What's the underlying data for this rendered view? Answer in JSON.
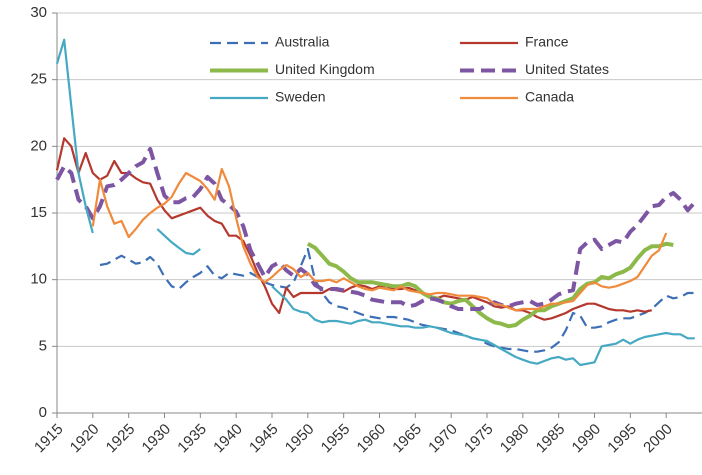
{
  "chart_data": {
    "type": "line",
    "x": [
      1915,
      1916,
      1917,
      1918,
      1919,
      1920,
      1921,
      1922,
      1923,
      1924,
      1925,
      1926,
      1927,
      1928,
      1929,
      1930,
      1931,
      1932,
      1933,
      1934,
      1935,
      1936,
      1937,
      1938,
      1939,
      1940,
      1941,
      1942,
      1943,
      1944,
      1945,
      1946,
      1947,
      1948,
      1949,
      1950,
      1951,
      1952,
      1953,
      1954,
      1955,
      1956,
      1957,
      1958,
      1959,
      1960,
      1961,
      1962,
      1963,
      1964,
      1965,
      1966,
      1967,
      1968,
      1969,
      1970,
      1971,
      1972,
      1973,
      1974,
      1975,
      1976,
      1977,
      1978,
      1979,
      1980,
      1981,
      1982,
      1983,
      1984,
      1985,
      1986,
      1987,
      1988,
      1989,
      1990,
      1991,
      1992,
      1993,
      1994,
      1995,
      1996,
      1997,
      1998,
      1999,
      2000,
      2001,
      2002,
      2003,
      2004
    ],
    "xlim": [
      1915,
      2005
    ],
    "xticks": [
      1915,
      1920,
      1925,
      1930,
      1935,
      1940,
      1945,
      1950,
      1955,
      1960,
      1965,
      1970,
      1975,
      1980,
      1985,
      1990,
      1995,
      2000
    ],
    "ylim": [
      0,
      30
    ],
    "yticks": [
      0,
      5,
      10,
      15,
      20,
      25,
      30
    ],
    "grid": true,
    "legend": "top",
    "series": [
      {
        "name": "Australia",
        "color": "#3d6fb6",
        "line_style": "dashed",
        "thick": false,
        "values": [
          null,
          null,
          null,
          null,
          null,
          null,
          11.1,
          11.2,
          11.5,
          11.8,
          11.5,
          11.2,
          11.3,
          11.7,
          11.2,
          10.2,
          9.5,
          9.3,
          9.8,
          10.2,
          10.5,
          11,
          10.3,
          10.1,
          10.5,
          10.4,
          10.3,
          10.5,
          10.2,
          9.8,
          9.6,
          9.5,
          9.4,
          9.8,
          11,
          12.3,
          10,
          9,
          8.3,
          8,
          7.9,
          7.7,
          7.5,
          7.3,
          7.2,
          7.1,
          7.2,
          7.2,
          7.1,
          7,
          6.8,
          6.6,
          6.5,
          6.4,
          6.3,
          6.2,
          6,
          5.8,
          5.6,
          5.5,
          5.2,
          5,
          4.9,
          4.8,
          4.8,
          4.7,
          4.6,
          4.6,
          4.7,
          4.9,
          5.3,
          6.2,
          7.5,
          7.3,
          6.4,
          6.4,
          6.5,
          6.8,
          7,
          7.1,
          7.1,
          7.3,
          7.5,
          7.8,
          8.3,
          8.8,
          8.6,
          8.7,
          9,
          9
        ]
      },
      {
        "name": "France",
        "color": "#b5382f",
        "line_style": "solid",
        "thick": false,
        "values": [
          18.2,
          20.6,
          20,
          18,
          19.5,
          18,
          17.5,
          17.8,
          18.9,
          18,
          18,
          17.6,
          17.3,
          17.2,
          16,
          15.2,
          14.6,
          14.8,
          15,
          15.2,
          15.4,
          14.8,
          14.4,
          14.2,
          13.3,
          13.3,
          12.9,
          11.8,
          10.5,
          9.5,
          8.2,
          7.5,
          9.4,
          8.7,
          9,
          9,
          9,
          9,
          9.3,
          9.2,
          9.1,
          9.4,
          9.6,
          9.5,
          9.3,
          9.5,
          9.5,
          9.3,
          9.3,
          9.4,
          9.2,
          9,
          8.8,
          8.6,
          8.8,
          8.7,
          8.6,
          8.5,
          8.7,
          8.5,
          8.3,
          8,
          7.9,
          8,
          7.7,
          7.7,
          7.5,
          7.2,
          7,
          7.1,
          7.3,
          7.5,
          7.8,
          8,
          8.2,
          8.2,
          8,
          7.8,
          7.7,
          7.7,
          7.6,
          7.7,
          7.6,
          7.7,
          null,
          null,
          null,
          null,
          null,
          null
        ]
      },
      {
        "name": "United Kingdom",
        "color": "#8cb94a",
        "line_style": "solid",
        "thick": true,
        "values": [
          null,
          null,
          null,
          null,
          null,
          null,
          null,
          null,
          null,
          null,
          null,
          null,
          null,
          null,
          null,
          null,
          null,
          null,
          null,
          null,
          null,
          null,
          null,
          null,
          null,
          null,
          null,
          null,
          null,
          null,
          null,
          null,
          null,
          null,
          null,
          12.7,
          12.4,
          11.8,
          11.2,
          11,
          10.6,
          10.1,
          9.8,
          9.8,
          9.8,
          9.7,
          9.6,
          9.5,
          9.5,
          9.7,
          9.5,
          9,
          8.7,
          8.6,
          8.3,
          8.2,
          8.4,
          8.5,
          8,
          7.5,
          7.1,
          6.8,
          6.7,
          6.5,
          6.6,
          7,
          7.3,
          7.7,
          7.7,
          8,
          8.2,
          8.4,
          8.6,
          9.3,
          9.7,
          9.8,
          10.2,
          10.1,
          10.4,
          10.6,
          10.9,
          11.6,
          12.2,
          12.5,
          12.5,
          12.7,
          12.6,
          null,
          null,
          null
        ]
      },
      {
        "name": "United States",
        "color": "#7d56a3",
        "line_style": "dashed",
        "thick": true,
        "values": [
          17.5,
          18.5,
          18,
          16,
          15.5,
          14.6,
          15.5,
          17,
          17.1,
          17.5,
          18,
          18.5,
          18.8,
          19.8,
          18,
          16.3,
          15.8,
          15.8,
          16.1,
          16.2,
          16.8,
          17.7,
          17.2,
          16,
          15.6,
          15.1,
          14,
          12.2,
          11.2,
          10.2,
          11,
          11.3,
          10.7,
          10.3,
          10.8,
          10.4,
          9.6,
          9.3,
          9.3,
          9.3,
          9.2,
          9.1,
          9,
          8.8,
          8.5,
          8.4,
          8.3,
          8.3,
          8.3,
          8,
          8.1,
          8.4,
          8.6,
          8.5,
          8.3,
          8,
          7.8,
          7.8,
          7.8,
          7.8,
          8.1,
          8.3,
          8.1,
          8,
          8.2,
          8.3,
          8.4,
          8.1,
          8.2,
          8.5,
          8.9,
          9.1,
          9.2,
          12.3,
          12.8,
          13,
          12.3,
          12.6,
          12.9,
          12.8,
          13.6,
          14.1,
          14.8,
          15.5,
          15.6,
          16.2,
          16.5,
          16,
          15.2,
          15.8
        ]
      },
      {
        "name": "Sweden",
        "color": "#46a9c3",
        "line_style": "solid",
        "thick": false,
        "values": [
          26.2,
          28,
          23,
          18,
          15.5,
          13.5,
          null,
          null,
          null,
          null,
          null,
          null,
          null,
          null,
          13.8,
          13.3,
          12.8,
          12.4,
          12,
          11.9,
          12.3,
          null,
          null,
          null,
          null,
          null,
          null,
          null,
          null,
          null,
          9.5,
          9,
          8.5,
          7.8,
          7.6,
          7.5,
          7,
          6.8,
          6.9,
          6.9,
          6.8,
          6.7,
          6.9,
          7,
          6.8,
          6.8,
          6.7,
          6.6,
          6.5,
          6.5,
          6.4,
          6.4,
          6.5,
          6.4,
          6.2,
          6,
          5.9,
          5.8,
          5.6,
          5.5,
          5.4,
          5.1,
          4.8,
          4.5,
          4.2,
          4,
          3.8,
          3.7,
          3.9,
          4.1,
          4.2,
          4,
          4.1,
          3.6,
          3.7,
          3.8,
          5,
          5.1,
          5.2,
          5.5,
          5.2,
          5.5,
          5.7,
          5.8,
          5.9,
          6,
          5.9,
          5.9,
          5.6,
          5.6
        ]
      },
      {
        "name": "Canada",
        "color": "#f08a3c",
        "line_style": "solid",
        "thick": false,
        "values": [
          null,
          null,
          null,
          null,
          null,
          14,
          17.5,
          15.5,
          14.2,
          14.4,
          13.2,
          13.8,
          14.5,
          15,
          15.4,
          15.7,
          16.2,
          17.2,
          18,
          17.7,
          17.4,
          16.8,
          16,
          18.3,
          17,
          14.6,
          12.5,
          11.2,
          10.2,
          9.8,
          10.2,
          10.7,
          11.1,
          10.8,
          10.2,
          10.5,
          9.9,
          9.9,
          10,
          9.8,
          10.1,
          9.8,
          9.5,
          9.3,
          9.2,
          9.4,
          9.3,
          9.2,
          9.5,
          9.2,
          9.1,
          9,
          8.9,
          9,
          9,
          8.9,
          8.8,
          8.8,
          8.8,
          8.7,
          8.6,
          8.2,
          8.1,
          7.9,
          7.7,
          7.8,
          7.8,
          7.8,
          8,
          8.2,
          8.2,
          8.3,
          8.4,
          9,
          9.6,
          9.8,
          9.5,
          9.4,
          9.5,
          9.7,
          9.9,
          10.2,
          11,
          11.8,
          12.2,
          13.5,
          null,
          null,
          null,
          null
        ]
      }
    ]
  }
}
